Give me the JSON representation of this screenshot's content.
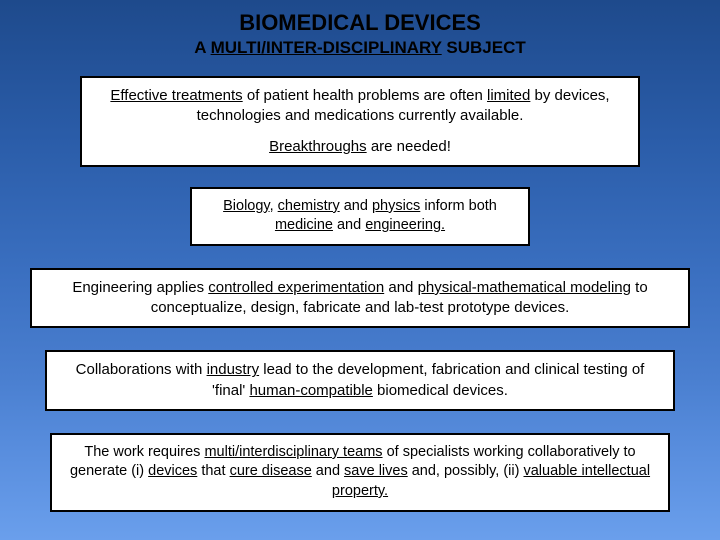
{
  "title": "BIOMEDICAL DEVICES",
  "subtitle_pre": "A ",
  "subtitle_u": "MULTI/INTER-DISCIPLINARY",
  "subtitle_post": " SUBJECT",
  "box1": {
    "p1_a": "Effective treatments",
    "p1_b": " of patient health problems are often ",
    "p1_c": "limited",
    "p1_d": " by devices, technologies and medications currently available.",
    "p2_a": "Breakthroughs",
    "p2_b": " are needed!"
  },
  "box2": {
    "a": "Biology",
    "b": ", ",
    "c": "chemistry",
    "d": " and ",
    "e": "physics",
    "f": " inform both ",
    "g": "medicine",
    "h": " and ",
    "i": "engineering",
    "j": "."
  },
  "box3": {
    "a": "Engineering applies ",
    "b": "controlled experimentation",
    "c": " and ",
    "d": "physical-mathematical modeling",
    "e": " to conceptualize, design, fabricate and lab-test prototype devices."
  },
  "box4": {
    "a": "Collaborations with ",
    "b": "industry",
    "c": " lead to the development, fabrication and clinical testing of 'final' ",
    "d": "human-compatible",
    "e": " biomedical devices."
  },
  "box5": {
    "a": "The work requires ",
    "b": "multi/interdisciplinary teams",
    "c": " of specialists working collaboratively to generate (i) ",
    "d": "devices",
    "e": " that ",
    "f": "cure disease",
    "g": " and ",
    "h": "save lives",
    "i": " and, possibly,  (ii) ",
    "j": "valuable intellectual property",
    "k": "."
  },
  "colors": {
    "bg_top": "#1e4a8c",
    "bg_bottom": "#6a9fec",
    "box_bg": "#ffffff",
    "box_border": "#000000",
    "text": "#000000"
  }
}
